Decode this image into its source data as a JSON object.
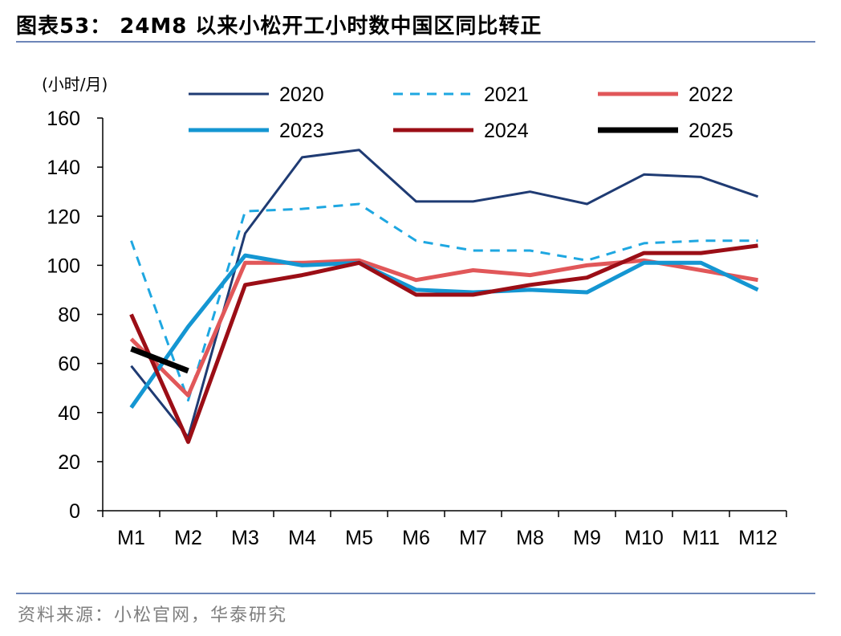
{
  "header": {
    "title": "图表53： 24M8 以来小松开工小时数中国区同比转正"
  },
  "footer": {
    "source": "资料来源：小松官网，华泰研究"
  },
  "chart_data": {
    "type": "line",
    "title": "",
    "ylabel": "(小时/月)",
    "xlabel": "",
    "ylim": [
      0,
      160
    ],
    "yticks": [
      0,
      20,
      40,
      60,
      80,
      100,
      120,
      140,
      160
    ],
    "categories": [
      "M1",
      "M2",
      "M3",
      "M4",
      "M5",
      "M6",
      "M7",
      "M8",
      "M9",
      "M10",
      "M11",
      "M12"
    ],
    "legend_position": "top",
    "grid": false,
    "series": [
      {
        "name": "2020",
        "color": "#1f3b73",
        "dash": "solid",
        "width": 3,
        "values": [
          59,
          30,
          113,
          144,
          147,
          126,
          126,
          130,
          125,
          137,
          136,
          128
        ]
      },
      {
        "name": "2021",
        "color": "#1ea7e1",
        "dash": "dashed",
        "width": 3,
        "values": [
          110,
          45,
          122,
          123,
          125,
          110,
          106,
          106,
          102,
          109,
          110,
          110
        ]
      },
      {
        "name": "2022",
        "color": "#e15759",
        "dash": "solid",
        "width": 5,
        "values": [
          70,
          47,
          101,
          101,
          102,
          94,
          98,
          96,
          100,
          102,
          98,
          94
        ]
      },
      {
        "name": "2023",
        "color": "#1496d2",
        "dash": "solid",
        "width": 5,
        "values": [
          42,
          75,
          104,
          100,
          101,
          90,
          89,
          90,
          89,
          101,
          101,
          90
        ]
      },
      {
        "name": "2024",
        "color": "#9b0e16",
        "dash": "solid",
        "width": 5,
        "values": [
          80,
          28,
          92,
          96,
          101,
          88,
          88,
          92,
          95,
          105,
          105,
          108
        ]
      },
      {
        "name": "2025",
        "color": "#000000",
        "dash": "solid",
        "width": 7,
        "values": [
          66,
          57,
          null,
          null,
          null,
          null,
          null,
          null,
          null,
          null,
          null,
          null
        ]
      }
    ]
  }
}
